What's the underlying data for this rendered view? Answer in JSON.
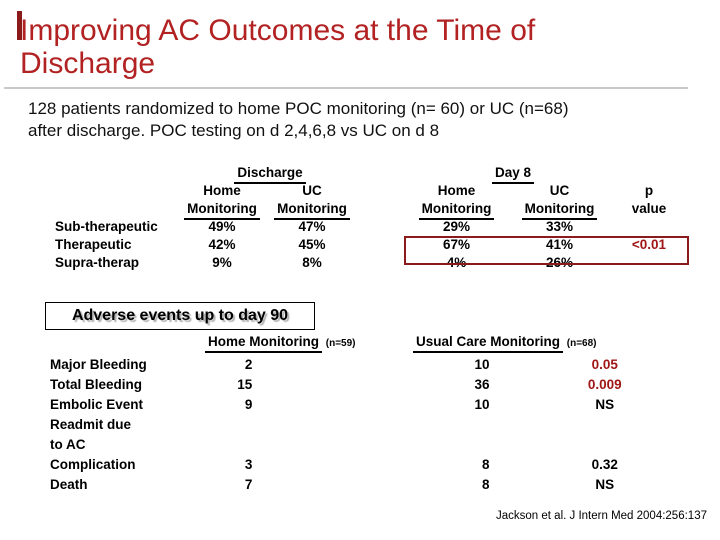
{
  "slide": {
    "title": "Improving AC Outcomes at the Time of Discharge",
    "intro": {
      "line1": "128 patients randomized to home POC monitoring (n= 60) or UC (n=68)",
      "line2": "after discharge. POC testing on d 2,4,6,8 vs UC on d 8"
    },
    "citation": "Jackson et al. J Intern Med 2004:256:137"
  },
  "colors": {
    "title_red": "#B22222",
    "accent_red": "#A01616",
    "box_border_red": "#8B1A1A",
    "divider_gray": "#C9C9C9",
    "shadow_gray": "#B3B3B3"
  },
  "inr_table": {
    "group1": "Discharge",
    "group2": "Day 8",
    "sub": {
      "home": "Home",
      "uc": "UC",
      "monitoring": "Monitoring",
      "p": "p",
      "value": "value"
    },
    "rows": [
      {
        "label": "Sub-therapeutic",
        "d_home": "49%",
        "d_uc": "47%",
        "day8_home": "29%",
        "day8_uc": "33%",
        "p": ""
      },
      {
        "label": "Therapeutic",
        "d_home": "42%",
        "d_uc": "45%",
        "day8_home": "67%",
        "day8_uc": "41%",
        "p": "<0.01"
      },
      {
        "label": "Supra-therap",
        "d_home": "9%",
        "d_uc": "8%",
        "day8_home": "4%",
        "day8_uc": "26%",
        "p": ""
      }
    ]
  },
  "adverse": {
    "heading": "Adverse events up to day 90",
    "col1_header": "Home Monitoring",
    "col1_n": "(n=59)",
    "col2_header": "Usual Care Monitoring",
    "col2_n": "(n=68)",
    "rows": [
      {
        "label": "Major Bleeding",
        "home": "2",
        "uc": "10",
        "p": "0.05"
      },
      {
        "label": "Total Bleeding",
        "home": "15",
        "uc": "36",
        "p": "0.009"
      },
      {
        "label": "Embolic Event",
        "home": "9",
        "uc": "10",
        "p": "NS"
      },
      {
        "label": "Readmit due",
        "home": "",
        "uc": "",
        "p": ""
      },
      {
        "label": "to AC",
        "home": "",
        "uc": "",
        "p": ""
      },
      {
        "label": "Complication",
        "home": "3",
        "uc": "8",
        "p": "0.32"
      },
      {
        "label": "Death",
        "home": "7",
        "uc": "8",
        "p": "NS"
      }
    ]
  }
}
